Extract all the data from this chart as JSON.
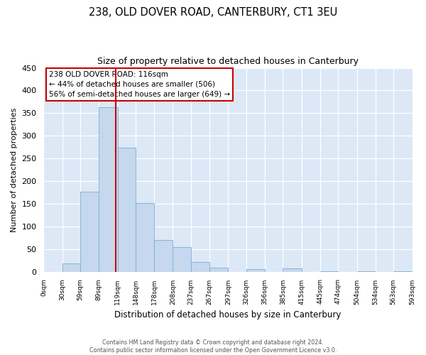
{
  "title": "238, OLD DOVER ROAD, CANTERBURY, CT1 3EU",
  "subtitle": "Size of property relative to detached houses in Canterbury",
  "xlabel": "Distribution of detached houses by size in Canterbury",
  "ylabel": "Number of detached properties",
  "bin_edges": [
    0,
    30,
    59,
    89,
    119,
    148,
    178,
    208,
    237,
    267,
    297,
    326,
    356,
    385,
    415,
    445,
    474,
    504,
    534,
    563,
    593
  ],
  "bar_heights": [
    0,
    18,
    176,
    363,
    274,
    151,
    70,
    54,
    22,
    8,
    0,
    6,
    0,
    7,
    0,
    1,
    0,
    1,
    0,
    1
  ],
  "bar_color": "#c5d8ed",
  "bar_edge_color": "#7aaed6",
  "vline_x": 116,
  "vline_color": "#cc0000",
  "ylim": [
    0,
    450
  ],
  "yticks": [
    0,
    50,
    100,
    150,
    200,
    250,
    300,
    350,
    400,
    450
  ],
  "xtick_labels": [
    "0sqm",
    "30sqm",
    "59sqm",
    "89sqm",
    "119sqm",
    "148sqm",
    "178sqm",
    "208sqm",
    "237sqm",
    "267sqm",
    "297sqm",
    "326sqm",
    "356sqm",
    "385sqm",
    "415sqm",
    "445sqm",
    "474sqm",
    "504sqm",
    "534sqm",
    "563sqm",
    "593sqm"
  ],
  "annotation_title": "238 OLD DOVER ROAD: 116sqm",
  "annotation_line1": "← 44% of detached houses are smaller (506)",
  "annotation_line2": "56% of semi-detached houses are larger (649) →",
  "annotation_box_color": "#ffffff",
  "annotation_box_edge_color": "#cc0000",
  "footer_line1": "Contains HM Land Registry data © Crown copyright and database right 2024.",
  "footer_line2": "Contains public sector information licensed under the Open Government Licence v3.0.",
  "plot_bg_color": "#dce8f5"
}
